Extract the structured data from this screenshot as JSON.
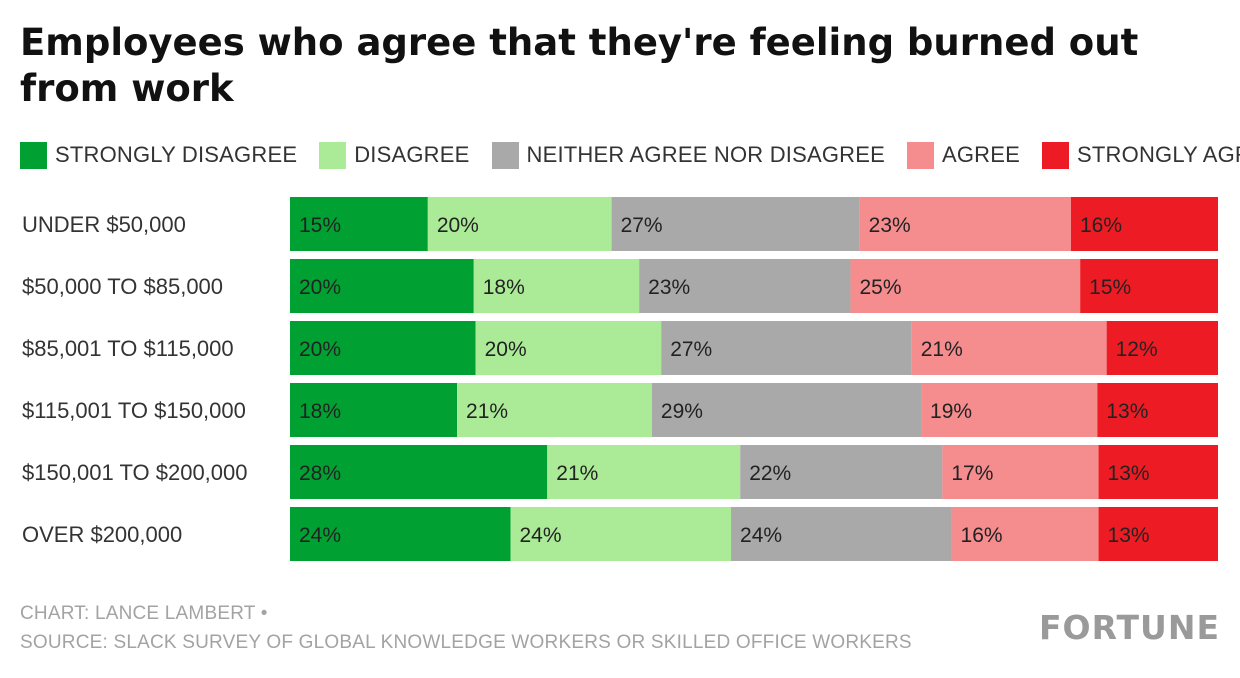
{
  "title": "Employees who agree that they're feeling burned out from work",
  "legend": [
    {
      "label": "STRONGLY DISAGREE",
      "color": "#01a032"
    },
    {
      "label": "DISAGREE",
      "color": "#abeb98"
    },
    {
      "label": "NEITHER AGREE NOR DISAGREE",
      "color": "#a9a9a9"
    },
    {
      "label": "AGREE",
      "color": "#f58c8e"
    },
    {
      "label": "STRONGLY AGREE",
      "color": "#ed1c24"
    }
  ],
  "chart_data": {
    "type": "bar",
    "orientation": "horizontal-stacked-100",
    "categories": [
      "UNDER $50,000",
      "$50,000 TO $85,000",
      "$85,001 TO $115,000",
      "$115,001 TO $150,000",
      "$150,001 TO $200,000",
      "OVER $200,000"
    ],
    "series": [
      {
        "name": "STRONGLY DISAGREE",
        "color": "#01a032",
        "values": [
          15,
          20,
          20,
          18,
          28,
          24
        ]
      },
      {
        "name": "DISAGREE",
        "color": "#abeb98",
        "values": [
          20,
          18,
          20,
          21,
          21,
          24
        ]
      },
      {
        "name": "NEITHER AGREE NOR DISAGREE",
        "color": "#a9a9a9",
        "values": [
          27,
          23,
          27,
          29,
          22,
          24
        ]
      },
      {
        "name": "AGREE",
        "color": "#f58c8e",
        "values": [
          23,
          25,
          21,
          19,
          17,
          16
        ]
      },
      {
        "name": "STRONGLY AGREE",
        "color": "#ed1c24",
        "values": [
          16,
          15,
          12,
          13,
          13,
          13
        ]
      }
    ],
    "value_suffix": "%",
    "legend_position": "top"
  },
  "footer": {
    "credit": "CHART: LANCE LAMBERT •",
    "source": "SOURCE: SLACK SURVEY OF GLOBAL KNOWLEDGE WORKERS OR SKILLED OFFICE WORKERS",
    "logo": "FORTUNE"
  }
}
